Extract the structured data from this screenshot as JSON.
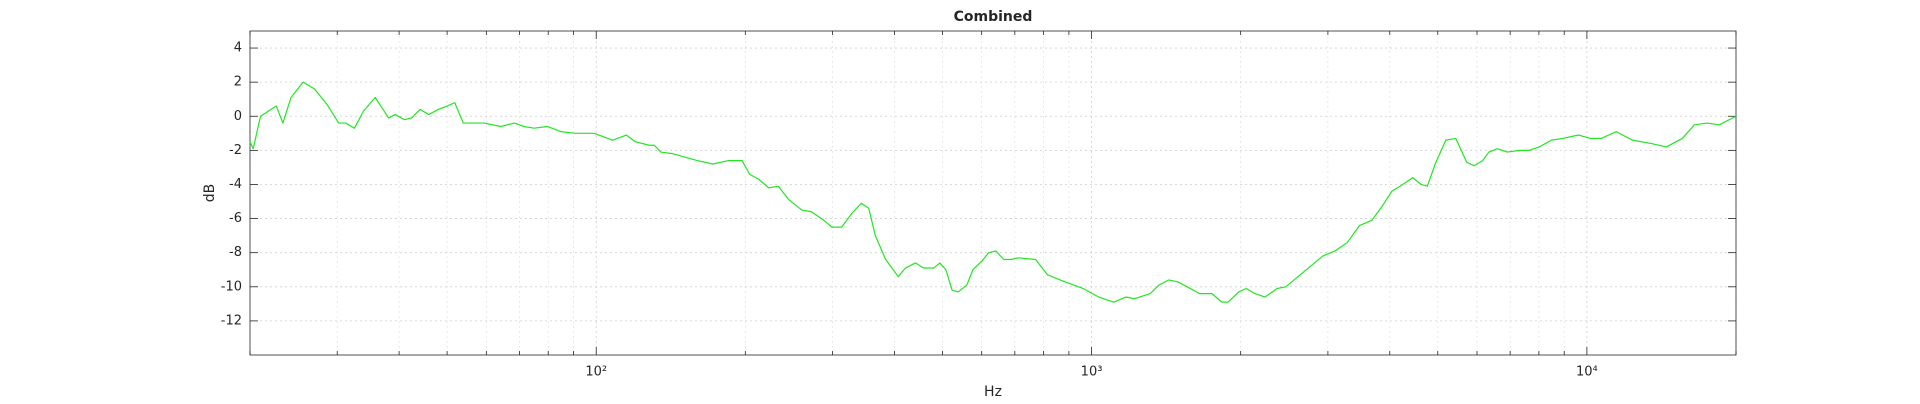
{
  "chart_data": {
    "type": "line",
    "title": "Combined",
    "xlabel": "Hz",
    "ylabel": "dB",
    "xscale": "log",
    "color": "#22e622",
    "grid": true,
    "xlim": [
      20,
      20000
    ],
    "ylim": [
      -14,
      5
    ],
    "xticks": [
      {
        "value": 100,
        "label": "10²"
      },
      {
        "value": 1000,
        "label": "10³"
      },
      {
        "value": 10000,
        "label": "10⁴"
      }
    ],
    "xminorticks": [
      20,
      30,
      40,
      50,
      60,
      70,
      80,
      90,
      200,
      300,
      400,
      500,
      600,
      700,
      800,
      900,
      2000,
      3000,
      4000,
      5000,
      6000,
      7000,
      8000,
      9000,
      20000
    ],
    "yticks": [
      -12,
      -10,
      -8,
      -6,
      -4,
      -2,
      0,
      2,
      4
    ],
    "x": [
      20,
      20.3,
      21,
      22.6,
      23.3,
      24.2,
      25.6,
      27,
      28.6,
      30.2,
      31.2,
      32.5,
      33.9,
      35.8,
      38.1,
      39.3,
      41,
      42.4,
      44.1,
      45.9,
      48,
      50,
      51.8,
      53.9,
      56.7,
      59.3,
      64.2,
      68.3,
      71.5,
      74.9,
      79.7,
      84.8,
      90.8,
      99,
      108,
      115,
      120,
      128,
      131,
      135,
      143,
      151,
      160,
      172,
      185,
      197,
      204,
      213,
      223,
      233,
      245,
      260,
      272,
      288,
      299,
      313,
      328,
      343,
      355,
      366,
      384,
      407,
      421,
      441,
      458,
      480,
      494,
      508,
      523,
      538,
      560,
      576,
      600,
      620,
      641,
      665,
      688,
      711,
      771,
      815,
      882,
      961,
      1034,
      1108,
      1173,
      1221,
      1314,
      1368,
      1431,
      1490,
      1560,
      1652,
      1750,
      1832,
      1885,
      1982,
      2053,
      2137,
      2239,
      2370,
      2467,
      2612,
      2766,
      2929,
      3101,
      3284,
      3477,
      3682,
      3856,
      4037,
      4249,
      4450,
      4629,
      4763,
      4940,
      5190,
      5435,
      5720,
      5919,
      6160,
      6340,
      6595,
      6906,
      7308,
      7650,
      8012,
      8483,
      8929,
      9620,
      10170,
      10690,
      11460,
      12360,
      13500,
      14470,
      15580,
      16490,
      17470,
      18500,
      20000
    ],
    "values": [
      -1.5,
      -1.9,
      0,
      0.6,
      -0.4,
      1.1,
      2,
      1.6,
      0.7,
      -0.4,
      -0.4,
      -0.7,
      0.3,
      1.1,
      -0.1,
      0.1,
      -0.2,
      -0.1,
      0.4,
      0.1,
      0.4,
      0.6,
      0.8,
      -0.4,
      -0.4,
      -0.4,
      -0.6,
      -0.4,
      -0.6,
      -0.7,
      -0.6,
      -0.9,
      -1,
      -1,
      -1.4,
      -1.1,
      -1.5,
      -1.7,
      -1.7,
      -2.1,
      -2.2,
      -2.4,
      -2.6,
      -2.8,
      -2.6,
      -2.6,
      -3.4,
      -3.7,
      -4.2,
      -4.1,
      -4.9,
      -5.5,
      -5.6,
      -6.1,
      -6.5,
      -6.5,
      -5.7,
      -5.1,
      -5.4,
      -7,
      -8.4,
      -9.4,
      -8.9,
      -8.6,
      -8.9,
      -8.9,
      -8.6,
      -9,
      -10.2,
      -10.3,
      -9.9,
      -9,
      -8.5,
      -8,
      -7.9,
      -8.4,
      -8.4,
      -8.3,
      -8.4,
      -9.3,
      -9.7,
      -10.1,
      -10.6,
      -10.9,
      -10.6,
      -10.7,
      -10.4,
      -9.9,
      -9.6,
      -9.7,
      -10,
      -10.4,
      -10.4,
      -10.9,
      -10.9,
      -10.3,
      -10.1,
      -10.4,
      -10.6,
      -10.1,
      -10,
      -9.4,
      -8.8,
      -8.2,
      -7.9,
      -7.4,
      -6.4,
      -6.1,
      -5.3,
      -4.4,
      -4,
      -3.6,
      -4,
      -4.1,
      -2.8,
      -1.4,
      -1.3,
      -2.7,
      -2.9,
      -2.6,
      -2.1,
      -1.9,
      -2.1,
      -2,
      -2,
      -1.8,
      -1.4,
      -1.3,
      -1.1,
      -1.3,
      -1.3,
      -0.9,
      -1.4,
      -1.6,
      -1.8,
      -1.3,
      -0.5,
      -0.4,
      -0.5,
      0
    ]
  }
}
